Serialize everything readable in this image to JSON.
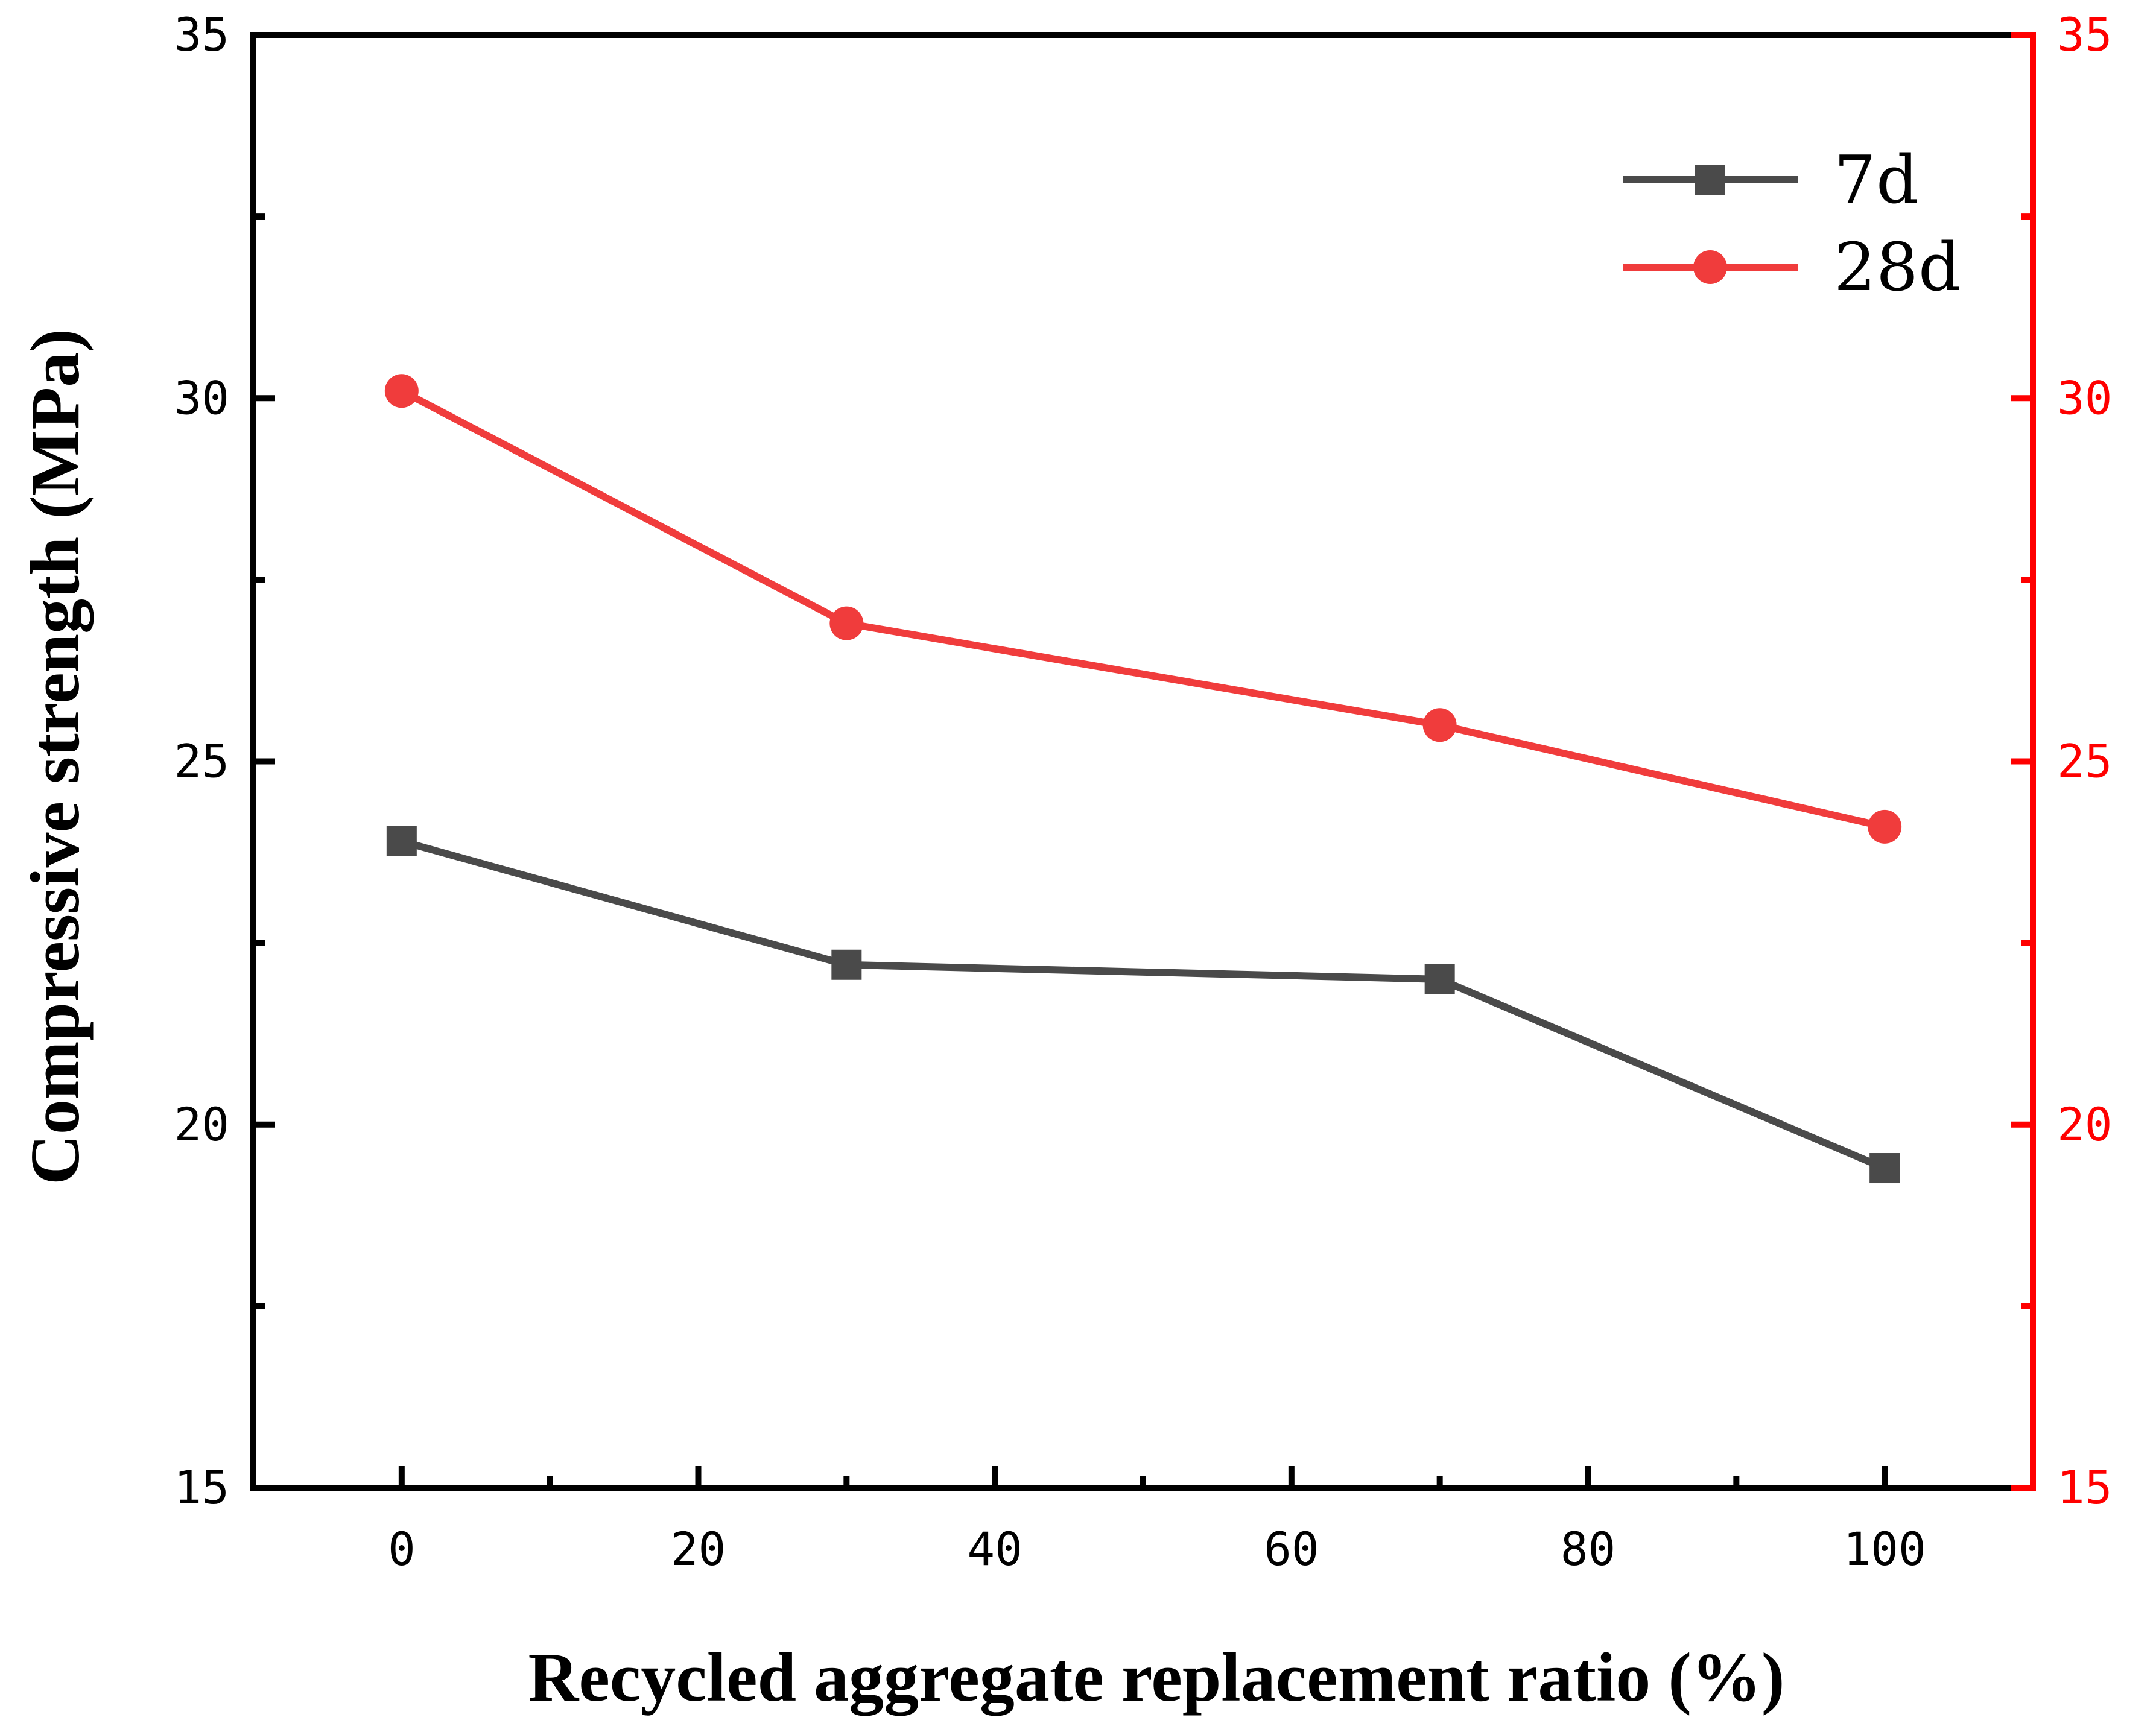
{
  "chart_data": {
    "type": "line",
    "title": "",
    "xlabel": "Recycled aggregate replacement ratio (%)",
    "ylabel": "Compressive strength (MPa)",
    "xlim": [
      -10,
      110
    ],
    "ylim": [
      15,
      35
    ],
    "y2lim": [
      15,
      35
    ],
    "x_ticks": [
      0,
      20,
      40,
      60,
      80,
      100
    ],
    "x_tick_labels": [
      "0",
      "20",
      "40",
      "60",
      "80",
      "100"
    ],
    "y_ticks": [
      15,
      20,
      25,
      30,
      35
    ],
    "y_tick_labels": [
      "15",
      "20",
      "25",
      "30",
      "35"
    ],
    "y2_tick_labels": [
      "15",
      "20",
      "25",
      "30",
      "35"
    ],
    "x_minor_ticks": [
      10,
      30,
      50,
      70,
      90
    ],
    "y_minor_ticks": [
      17.5,
      22.5,
      27.5,
      32.5
    ],
    "grid": false,
    "legend_position": "top-right",
    "series": [
      {
        "name": "7d",
        "marker": "square",
        "color": "#4a4a4a",
        "x": [
          0,
          30,
          70,
          100
        ],
        "y": [
          23.9,
          22.2,
          22.0,
          19.4
        ]
      },
      {
        "name": "28d",
        "marker": "circle",
        "color": "#f03c3c",
        "x": [
          0,
          30,
          70,
          100
        ],
        "y": [
          30.1,
          26.9,
          25.5,
          24.1
        ]
      }
    ],
    "colors": {
      "left_axis": "#000000",
      "right_axis": "#ff0000"
    }
  }
}
